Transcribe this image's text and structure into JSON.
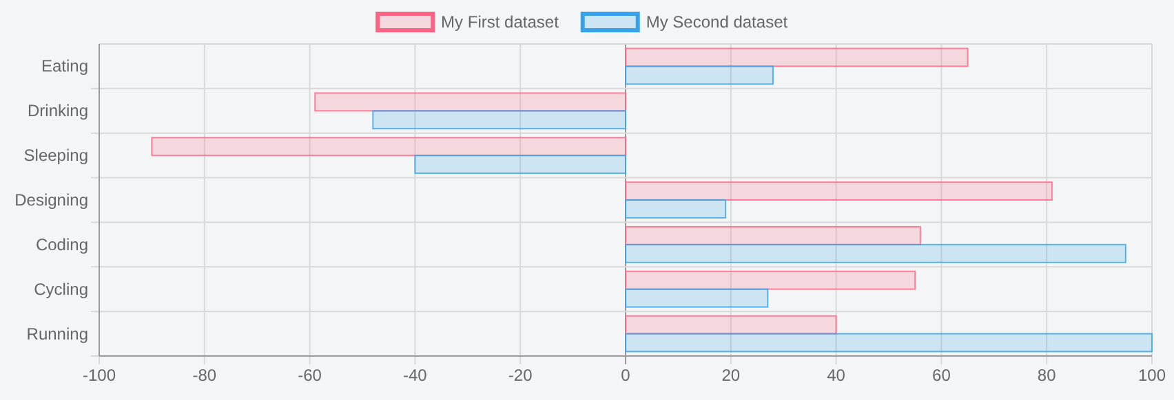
{
  "chart_data": {
    "type": "bar",
    "orientation": "horizontal",
    "categories": [
      "Eating",
      "Drinking",
      "Sleeping",
      "Designing",
      "Coding",
      "Cycling",
      "Running"
    ],
    "series": [
      {
        "name": "My First dataset",
        "color": "#ff6384",
        "values": [
          65,
          -59,
          -90,
          81,
          56,
          55,
          40
        ]
      },
      {
        "name": "My Second dataset",
        "color": "#36a2eb",
        "values": [
          28,
          -48,
          -40,
          19,
          95,
          27,
          100
        ]
      }
    ],
    "xlim": [
      -100,
      100
    ],
    "xticks": [
      -100,
      -80,
      -60,
      -40,
      -20,
      0,
      20,
      40,
      60,
      80,
      100
    ],
    "grid": true,
    "legend": "top"
  }
}
